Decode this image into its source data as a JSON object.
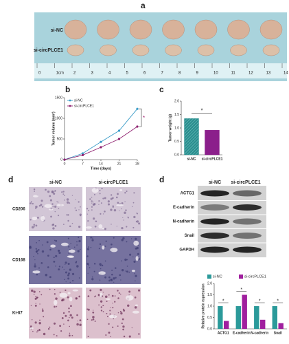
{
  "figure": {
    "panel_labels": [
      "a",
      "b",
      "c",
      "d",
      "d"
    ],
    "photo": {
      "rows": [
        "si-NC",
        "si-circPLCE1"
      ],
      "ruler": [
        "0",
        "1cm",
        "2",
        "3",
        "4",
        "5",
        "6",
        "7",
        "8",
        "9",
        "10",
        "11",
        "12",
        "13",
        "14"
      ]
    },
    "ihc": {
      "columns": [
        "si-NC",
        "si-circPLCE1"
      ],
      "rows": [
        "CD206",
        "CD168",
        "Ki-67"
      ]
    },
    "blot": {
      "columns": [
        "si-NC",
        "si-circPLCE1"
      ],
      "rows": [
        "ACTG1",
        "E-cadherin",
        "N-cadherin",
        "Snail",
        "GAPDH"
      ]
    }
  },
  "chart_data": [
    {
      "type": "line",
      "y_label": "Tumor volume (mm³)",
      "x_label": "Time (days)",
      "x": [
        0,
        7,
        14,
        21,
        28
      ],
      "xlim": [
        0,
        28
      ],
      "xticks": [
        0,
        7,
        14,
        21,
        28
      ],
      "ylim": [
        0,
        1500
      ],
      "yticks": [
        0,
        500,
        1000,
        1500
      ],
      "legend": "upper left",
      "annotation": "*",
      "series": [
        {
          "name": "si-NC",
          "color": "#3a9cc8",
          "values": [
            0,
            150,
            430,
            700,
            1230
          ]
        },
        {
          "name": "si-circPLCE1",
          "color": "#8e1f6e",
          "values": [
            0,
            110,
            300,
            500,
            800
          ]
        }
      ]
    },
    {
      "type": "bar",
      "y_label": "Tumor weight (g)",
      "categories": [
        "si-NC",
        "si-circPLCE1"
      ],
      "values": [
        1.35,
        0.92
      ],
      "colors": [
        "#2b8f8f",
        "#8b1f8b"
      ],
      "ylim": [
        0,
        2
      ],
      "yticks": [
        {
          "value": 0,
          "label": "0.0"
        },
        {
          "value": 0.5,
          "label": "0.5"
        },
        {
          "value": 1,
          "label": "1.0"
        },
        {
          "value": 1.5,
          "label": "1.5"
        },
        {
          "value": 2,
          "label": "2.0"
        }
      ],
      "annotation": "*"
    },
    {
      "type": "grouped_bar",
      "y_label": "Relative protein expression",
      "categories": [
        "ACTG1",
        "E-cadherin",
        "N-cadherin",
        "Snail"
      ],
      "ylim": [
        0,
        2
      ],
      "yticks": [
        {
          "value": 0,
          "label": "0.0"
        },
        {
          "value": 0.5,
          "label": "0.5"
        },
        {
          "value": 1,
          "label": "1.0"
        },
        {
          "value": 1.5,
          "label": "1.5"
        },
        {
          "value": 2,
          "label": "2.0"
        }
      ],
      "legend": "top",
      "annotations": [
        "*",
        "*",
        "*",
        "*"
      ],
      "series": [
        {
          "name": "si-NC",
          "color": "#2b9a9a",
          "values": [
            1,
            1,
            1,
            1
          ]
        },
        {
          "name": "si-circPLCE1",
          "color": "#a01f9e",
          "values": [
            0.35,
            1.5,
            0.4,
            0.25
          ]
        }
      ]
    }
  ]
}
